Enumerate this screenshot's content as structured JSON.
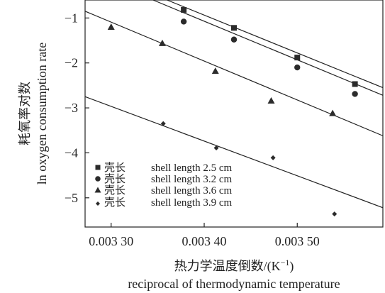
{
  "chart_data": {
    "type": "scatter",
    "x_axis": {
      "label_cn": "热力学温度倒数/(K",
      "label_cn_sup": "−1",
      "label_cn_close": ")",
      "label_en": "reciprocal of thermodynamic temperature",
      "xlim": [
        0.003272,
        0.003592
      ],
      "ticks": [
        0.0033,
        0.0034,
        0.0035
      ],
      "tick_labels": [
        "0.003 30",
        "0.003 40",
        "0.003 50"
      ]
    },
    "y_axis": {
      "label_cn": "耗氧率对数",
      "label_en": "ln oxygen consumption rate",
      "ylim": [
        -5.65,
        -0.6
      ],
      "ticks": [
        -1,
        -2,
        -3,
        -4,
        -5
      ],
      "tick_labels": [
        "−1",
        "−2",
        "−3",
        "−4",
        "−5"
      ]
    },
    "legend_position": "bottom-left",
    "series": [
      {
        "name_cn": "壳长",
        "name_en": "shell length 2.5 cm",
        "marker": "square",
        "points": [
          [
            0.003378,
            -0.82
          ],
          [
            0.003432,
            -1.22
          ],
          [
            0.0035,
            -1.88
          ],
          [
            0.003562,
            -2.47
          ]
        ],
        "fit": [
          [
            0.00336,
            -0.6
          ],
          [
            0.003592,
            -2.55
          ]
        ]
      },
      {
        "name_cn": "壳长",
        "name_en": "shell length 3.2 cm",
        "marker": "circle",
        "points": [
          [
            0.003378,
            -1.08
          ],
          [
            0.003432,
            -1.48
          ],
          [
            0.0035,
            -2.1
          ],
          [
            0.003562,
            -2.69
          ]
        ],
        "fit": [
          [
            0.003345,
            -0.6
          ],
          [
            0.003592,
            -2.72
          ]
        ]
      },
      {
        "name_cn": "壳长",
        "name_en": "shell length 3.6 cm",
        "marker": "triangle",
        "points": [
          [
            0.0033,
            -1.2
          ],
          [
            0.003355,
            -1.56
          ],
          [
            0.003412,
            -2.18
          ],
          [
            0.003472,
            -2.84
          ],
          [
            0.003538,
            -3.12
          ]
        ],
        "fit": [
          [
            0.003272,
            -0.85
          ],
          [
            0.003592,
            -3.62
          ]
        ]
      },
      {
        "name_cn": "壳长",
        "name_en": "shell length 3.9 cm",
        "marker": "diamond",
        "points": [
          [
            0.003356,
            -3.35
          ],
          [
            0.003413,
            -3.89
          ],
          [
            0.003474,
            -4.11
          ],
          [
            0.00354,
            -5.36
          ]
        ],
        "fit": [
          [
            0.003272,
            -2.75
          ],
          [
            0.003592,
            -5.22
          ]
        ]
      }
    ]
  }
}
